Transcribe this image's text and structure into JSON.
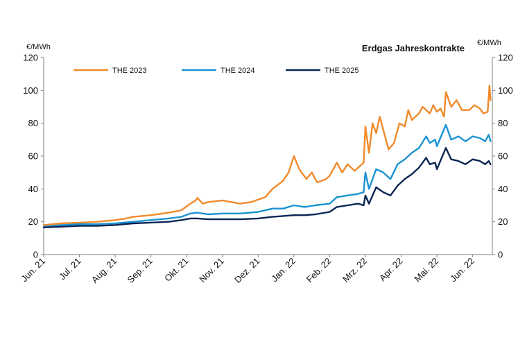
{
  "chart_data": {
    "type": "line",
    "title": "Erdgas Jahreskontrakte",
    "ylabel_left": "€/MWh",
    "ylabel_right": "€/MWh",
    "ylim": [
      0,
      120
    ],
    "yticks": [
      0,
      20,
      40,
      60,
      80,
      100,
      120
    ],
    "ytick_labels": [
      "0",
      "20",
      "40",
      "60",
      "80",
      "100",
      "120"
    ],
    "xlim": [
      0,
      12.55
    ],
    "xtick_positions": [
      0,
      1,
      2,
      3,
      4,
      5,
      6,
      7,
      8,
      9,
      10,
      11,
      12
    ],
    "xtick_labels": [
      "Jun. 21",
      "Jul. 21",
      "Aug. 21",
      "Sep. 21",
      "Okt. 21",
      "Nov. 21",
      "Dez. 21",
      "Jan. 22",
      "Feb. 22",
      "Mrz. 22",
      "Apr. 22",
      "Mai. 22",
      "Jun. 22"
    ],
    "legend_position": "top-left",
    "series": [
      {
        "name": "THE 2023",
        "color": "#F08A2A",
        "points": [
          [
            0,
            18
          ],
          [
            0.5,
            19
          ],
          [
            1,
            19.5
          ],
          [
            1.5,
            20
          ],
          [
            2,
            21
          ],
          [
            2.3,
            22
          ],
          [
            2.5,
            23
          ],
          [
            3,
            24
          ],
          [
            3.5,
            25.5
          ],
          [
            3.85,
            27
          ],
          [
            4.1,
            31
          ],
          [
            4.25,
            33
          ],
          [
            4.3,
            34.5
          ],
          [
            4.45,
            31
          ],
          [
            4.6,
            32
          ],
          [
            5,
            33
          ],
          [
            5.5,
            31
          ],
          [
            5.8,
            32
          ],
          [
            6,
            33.5
          ],
          [
            6.2,
            35
          ],
          [
            6.4,
            40
          ],
          [
            6.7,
            45
          ],
          [
            6.85,
            50
          ],
          [
            7.0,
            60
          ],
          [
            7.15,
            52
          ],
          [
            7.35,
            46
          ],
          [
            7.5,
            50
          ],
          [
            7.65,
            44
          ],
          [
            7.9,
            46
          ],
          [
            8.0,
            48
          ],
          [
            8.2,
            56
          ],
          [
            8.35,
            50
          ],
          [
            8.5,
            55
          ],
          [
            8.7,
            51
          ],
          [
            8.95,
            56
          ],
          [
            9.0,
            78
          ],
          [
            9.1,
            62
          ],
          [
            9.2,
            80
          ],
          [
            9.3,
            74
          ],
          [
            9.4,
            84
          ],
          [
            9.55,
            72
          ],
          [
            9.65,
            64
          ],
          [
            9.8,
            68
          ],
          [
            9.95,
            80
          ],
          [
            10.1,
            78
          ],
          [
            10.2,
            88
          ],
          [
            10.3,
            82
          ],
          [
            10.5,
            86
          ],
          [
            10.6,
            90
          ],
          [
            10.8,
            86
          ],
          [
            10.9,
            91
          ],
          [
            11.0,
            87
          ],
          [
            11.1,
            89
          ],
          [
            11.2,
            84
          ],
          [
            11.25,
            99
          ],
          [
            11.4,
            90
          ],
          [
            11.55,
            94
          ],
          [
            11.7,
            88
          ],
          [
            11.9,
            88
          ],
          [
            12.05,
            91
          ],
          [
            12.2,
            89
          ],
          [
            12.3,
            86
          ],
          [
            12.42,
            87
          ],
          [
            12.47,
            103
          ],
          [
            12.5,
            94
          ]
        ]
      },
      {
        "name": "THE 2024",
        "color": "#1B93D2",
        "points": [
          [
            0,
            17
          ],
          [
            0.5,
            18
          ],
          [
            1,
            18.5
          ],
          [
            1.5,
            18.5
          ],
          [
            2,
            19
          ],
          [
            2.5,
            20
          ],
          [
            3,
            21
          ],
          [
            3.5,
            22
          ],
          [
            3.85,
            23
          ],
          [
            4.1,
            25
          ],
          [
            4.3,
            25.5
          ],
          [
            4.6,
            24.5
          ],
          [
            5,
            25
          ],
          [
            5.5,
            25
          ],
          [
            6,
            26
          ],
          [
            6.4,
            28
          ],
          [
            6.7,
            28
          ],
          [
            7.0,
            30
          ],
          [
            7.3,
            29
          ],
          [
            7.6,
            30
          ],
          [
            8.0,
            31
          ],
          [
            8.2,
            35
          ],
          [
            8.5,
            36
          ],
          [
            8.8,
            37
          ],
          [
            8.95,
            38
          ],
          [
            9.0,
            50
          ],
          [
            9.1,
            40
          ],
          [
            9.3,
            52
          ],
          [
            9.5,
            50
          ],
          [
            9.7,
            46
          ],
          [
            9.9,
            55
          ],
          [
            10.1,
            58
          ],
          [
            10.3,
            62
          ],
          [
            10.5,
            65
          ],
          [
            10.7,
            72
          ],
          [
            10.8,
            68
          ],
          [
            10.95,
            70
          ],
          [
            11.0,
            66
          ],
          [
            11.25,
            79
          ],
          [
            11.4,
            70
          ],
          [
            11.6,
            72
          ],
          [
            11.8,
            69
          ],
          [
            12.0,
            72
          ],
          [
            12.2,
            71
          ],
          [
            12.35,
            69
          ],
          [
            12.45,
            73
          ],
          [
            12.5,
            69
          ]
        ]
      },
      {
        "name": "THE 2025",
        "color": "#0B2653",
        "points": [
          [
            0,
            16.5
          ],
          [
            0.5,
            17
          ],
          [
            1,
            17.5
          ],
          [
            1.5,
            17.5
          ],
          [
            2,
            18
          ],
          [
            2.5,
            19
          ],
          [
            3,
            19.5
          ],
          [
            3.5,
            20
          ],
          [
            3.85,
            21
          ],
          [
            4.1,
            22
          ],
          [
            4.3,
            22
          ],
          [
            4.6,
            21.5
          ],
          [
            5,
            21.5
          ],
          [
            5.5,
            21.5
          ],
          [
            6,
            22
          ],
          [
            6.4,
            23
          ],
          [
            6.7,
            23.5
          ],
          [
            7.0,
            24
          ],
          [
            7.3,
            24
          ],
          [
            7.6,
            24.5
          ],
          [
            8.0,
            26
          ],
          [
            8.2,
            29
          ],
          [
            8.5,
            30
          ],
          [
            8.8,
            31
          ],
          [
            8.95,
            30
          ],
          [
            9.0,
            36
          ],
          [
            9.1,
            31
          ],
          [
            9.3,
            41
          ],
          [
            9.5,
            38
          ],
          [
            9.7,
            36
          ],
          [
            9.9,
            42
          ],
          [
            10.1,
            46
          ],
          [
            10.3,
            49
          ],
          [
            10.5,
            53
          ],
          [
            10.7,
            59
          ],
          [
            10.8,
            55
          ],
          [
            10.95,
            56
          ],
          [
            11.0,
            52
          ],
          [
            11.25,
            65
          ],
          [
            11.4,
            58
          ],
          [
            11.6,
            57
          ],
          [
            11.8,
            55
          ],
          [
            12.0,
            58
          ],
          [
            12.2,
            57
          ],
          [
            12.35,
            55
          ],
          [
            12.45,
            57
          ],
          [
            12.5,
            55
          ]
        ]
      }
    ]
  }
}
